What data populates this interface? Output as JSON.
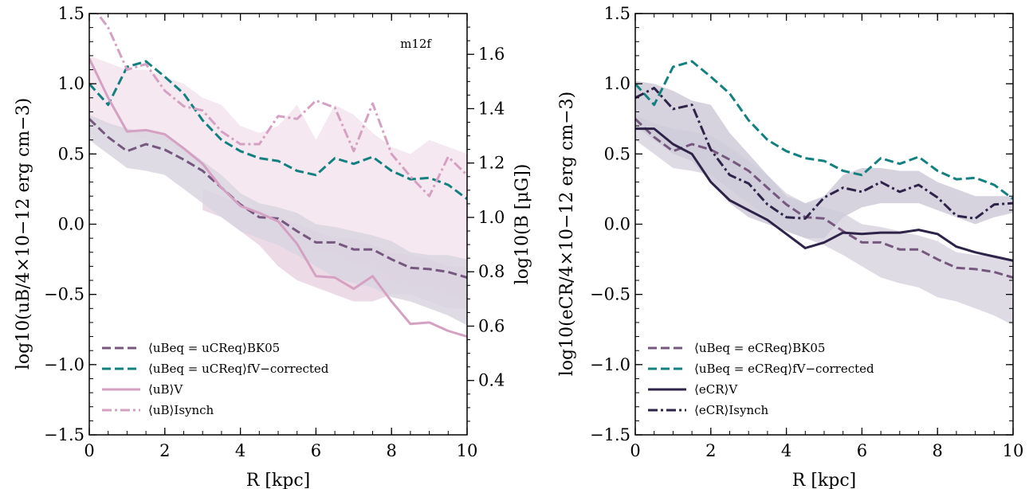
{
  "chart_data": [
    {
      "type": "line",
      "panel": "left",
      "xlabel": "R [kpc]",
      "ylabel": "log10(uB/4×10−12 erg cm−3)",
      "y2label": "log10(B [μG])",
      "annotation": "m12f",
      "xlim": [
        0,
        10
      ],
      "ylim": [
        -1.5,
        1.5
      ],
      "y2lim": [
        0.2,
        1.75
      ],
      "xticks": [
        0,
        2,
        4,
        6,
        8,
        10
      ],
      "xtick_labels": [
        "0",
        "2",
        "4",
        "6",
        "8",
        "10"
      ],
      "yticks": [
        -1.5,
        -1.0,
        -0.5,
        0.0,
        0.5,
        1.0,
        1.5
      ],
      "ytick_labels": [
        "−1.5",
        "−1.0",
        "−0.5",
        "0.0",
        "0.5",
        "1.0",
        "1.5"
      ],
      "y2ticks": [
        0.4,
        0.6,
        0.8,
        1.0,
        1.2,
        1.4,
        1.6
      ],
      "y2tick_labels": [
        "0.4",
        "0.6",
        "0.8",
        "1.0",
        "1.2",
        "1.4",
        "1.6"
      ],
      "legend_position": "lower-left",
      "bands": [
        {
          "color": "#f5e4ee",
          "x": [
            0,
            0.5,
            1,
            1.5,
            2,
            2.5,
            3,
            3.5,
            4,
            4.5,
            5,
            5.5,
            6,
            6.5,
            7,
            7.5,
            8,
            8.5,
            9,
            9.5,
            10
          ],
          "upper": [
            1.2,
            1.15,
            1.1,
            1.1,
            1.05,
            1.0,
            0.9,
            0.85,
            0.7,
            0.65,
            0.7,
            0.85,
            0.6,
            0.85,
            0.78,
            0.65,
            0.55,
            0.5,
            0.6,
            0.55,
            0.5
          ],
          "lower": [
            0.75,
            0.7,
            0.65,
            0.6,
            0.6,
            0.5,
            0.4,
            0.35,
            0.2,
            0.1,
            0.0,
            -0.1,
            -0.2,
            -0.2,
            -0.3,
            -0.3,
            -0.4,
            -0.45,
            -0.45,
            -0.5,
            -0.55
          ]
        },
        {
          "color": "#e9d5e2",
          "x": [
            3,
            3.5,
            4,
            4.5,
            5,
            5.5,
            6,
            6.5,
            7,
            7.5,
            8,
            8.5,
            9,
            9.5,
            10
          ],
          "upper": [
            0.25,
            0.2,
            0.15,
            0.1,
            0.05,
            0.0,
            -0.05,
            -0.1,
            -0.1,
            -0.15,
            -0.2,
            -0.22,
            -0.25,
            -0.3,
            -0.3
          ],
          "lower": [
            0.1,
            0.05,
            -0.05,
            -0.15,
            -0.3,
            -0.4,
            -0.45,
            -0.5,
            -0.55,
            -0.55,
            -0.5,
            -0.5,
            -0.55,
            -0.6,
            -0.6
          ]
        },
        {
          "color": "#d9d5e0",
          "x": [
            0,
            0.5,
            1,
            1.5,
            2,
            2.5,
            3,
            3.5,
            4,
            4.5,
            5,
            5.5,
            6,
            6.5,
            7,
            7.5,
            8,
            8.5,
            9,
            9.5,
            10
          ],
          "upper": [
            0.78,
            0.72,
            0.68,
            0.66,
            0.63,
            0.55,
            0.45,
            0.35,
            0.22,
            0.15,
            0.12,
            0.08,
            0.0,
            -0.02,
            -0.05,
            -0.08,
            -0.12,
            -0.2,
            -0.22,
            -0.22,
            -0.25
          ],
          "lower": [
            0.6,
            0.5,
            0.4,
            0.38,
            0.35,
            0.25,
            0.15,
            0.05,
            -0.05,
            -0.1,
            -0.15,
            -0.22,
            -0.3,
            -0.38,
            -0.42,
            -0.45,
            -0.52,
            -0.55,
            -0.6,
            -0.65,
            -0.72
          ]
        }
      ],
      "series": [
        {
          "name": "⟨uBeq = uCReq⟩BK05",
          "color": "#76587f",
          "dash": "dashed",
          "x": [
            0,
            0.5,
            1,
            1.5,
            2,
            2.5,
            3,
            3.5,
            4,
            4.5,
            5,
            5.5,
            6,
            6.5,
            7,
            7.5,
            8,
            8.5,
            9,
            9.5,
            10
          ],
          "y": [
            0.75,
            0.62,
            0.52,
            0.57,
            0.53,
            0.46,
            0.38,
            0.26,
            0.14,
            0.05,
            0.04,
            -0.05,
            -0.13,
            -0.13,
            -0.18,
            -0.18,
            -0.25,
            -0.31,
            -0.32,
            -0.34,
            -0.38
          ]
        },
        {
          "name": "⟨uBeq = uCReq⟩fV−corrected",
          "color": "#138080",
          "dash": "dashed",
          "x": [
            0,
            0.5,
            1,
            1.5,
            2,
            2.5,
            3,
            3.5,
            4,
            4.5,
            5,
            5.5,
            6,
            6.5,
            7,
            7.5,
            8,
            8.5,
            9,
            9.5,
            10
          ],
          "y": [
            1.0,
            0.85,
            1.12,
            1.16,
            1.05,
            0.93,
            0.74,
            0.6,
            0.52,
            0.47,
            0.45,
            0.38,
            0.35,
            0.47,
            0.43,
            0.48,
            0.38,
            0.32,
            0.33,
            0.28,
            0.18
          ]
        },
        {
          "name": "⟨uB⟩V",
          "color": "#d5a1c3",
          "dash": "solid",
          "x": [
            0,
            0.5,
            1,
            1.5,
            2,
            2.5,
            3,
            3.5,
            4,
            4.5,
            5,
            5.5,
            6,
            6.5,
            7,
            7.5,
            8,
            8.5,
            9,
            9.5,
            10
          ],
          "y": [
            1.18,
            0.9,
            0.66,
            0.67,
            0.64,
            0.54,
            0.43,
            0.26,
            0.13,
            0.08,
            0.02,
            -0.14,
            -0.37,
            -0.38,
            -0.46,
            -0.37,
            -0.55,
            -0.71,
            -0.7,
            -0.76,
            -0.8
          ]
        },
        {
          "name": "⟨uB⟩Isynch",
          "color": "#d5a1c3",
          "dash": "dashdot",
          "x": [
            0,
            0.5,
            1,
            1.5,
            2,
            2.5,
            3,
            3.5,
            4,
            4.5,
            5,
            5.5,
            6,
            6.5,
            7,
            7.5,
            8,
            8.5,
            9,
            9.5,
            10
          ],
          "y": [
            1.58,
            1.4,
            1.1,
            1.14,
            0.95,
            0.84,
            0.81,
            0.66,
            0.57,
            0.57,
            0.77,
            0.75,
            0.88,
            0.83,
            0.52,
            0.86,
            0.5,
            0.34,
            0.2,
            0.48,
            0.35
          ]
        }
      ],
      "legend": [
        {
          "label": "⟨uBeq = uCReq⟩BK05",
          "series": 0
        },
        {
          "label": "⟨uBeq = uCReq⟩fV−corrected",
          "series": 1
        },
        {
          "label": "⟨uB⟩V",
          "series": 2
        },
        {
          "label": "⟨uB⟩Isynch",
          "series": 3
        }
      ]
    },
    {
      "type": "line",
      "panel": "right",
      "xlabel": "R [kpc]",
      "ylabel": "log10(eCR/4×10−12 erg cm−3)",
      "xlim": [
        0,
        10
      ],
      "ylim": [
        -1.5,
        1.5
      ],
      "xticks": [
        0,
        2,
        4,
        6,
        8,
        10
      ],
      "xtick_labels": [
        "0",
        "2",
        "4",
        "6",
        "8",
        "10"
      ],
      "yticks": [
        -1.5,
        -1.0,
        -0.5,
        0.0,
        0.5,
        1.0,
        1.5
      ],
      "ytick_labels": [
        "−1.5",
        "−1.0",
        "−0.5",
        "0.0",
        "0.5",
        "1.0",
        "1.5"
      ],
      "legend_position": "lower-left",
      "bands": [
        {
          "color": "#d9d5e0",
          "x": [
            0,
            0.5,
            1,
            1.5,
            2,
            2.5,
            3,
            3.5,
            4,
            4.5,
            5,
            5.5,
            6,
            6.5,
            7,
            7.5,
            8,
            8.5,
            9,
            9.5,
            10
          ],
          "upper": [
            0.78,
            0.72,
            0.68,
            0.66,
            0.63,
            0.55,
            0.45,
            0.35,
            0.22,
            0.15,
            0.12,
            0.08,
            0.0,
            -0.02,
            -0.05,
            -0.08,
            -0.12,
            -0.2,
            -0.22,
            -0.22,
            -0.25
          ],
          "lower": [
            0.6,
            0.5,
            0.4,
            0.38,
            0.35,
            0.25,
            0.15,
            0.05,
            -0.05,
            -0.1,
            -0.15,
            -0.22,
            -0.3,
            -0.38,
            -0.42,
            -0.45,
            -0.52,
            -0.55,
            -0.6,
            -0.65,
            -0.72
          ]
        },
        {
          "color": "#cfcbd9",
          "x": [
            0,
            0.5,
            1,
            1.5,
            2,
            2.5,
            3,
            3.5,
            4,
            4.5,
            5,
            5.5,
            6,
            6.5,
            7,
            7.5,
            8,
            8.5,
            9,
            9.5,
            10
          ],
          "upper": [
            1.02,
            1.0,
            0.95,
            0.88,
            0.85,
            0.65,
            0.5,
            0.35,
            0.2,
            0.15,
            0.2,
            0.35,
            0.4,
            0.4,
            0.38,
            0.38,
            0.3,
            0.25,
            0.2,
            0.2,
            0.2
          ],
          "lower": [
            0.7,
            0.6,
            0.5,
            0.45,
            0.3,
            0.15,
            0.05,
            0.0,
            -0.05,
            -0.1,
            -0.1,
            0.05,
            0.12,
            0.15,
            0.15,
            0.15,
            0.1,
            0.05,
            0.0,
            0.05,
            0.08
          ]
        }
      ],
      "series": [
        {
          "name": "⟨uBeq = eCReq⟩BK05",
          "color": "#76587f",
          "dash": "dashed",
          "x": [
            0,
            0.5,
            1,
            1.5,
            2,
            2.5,
            3,
            3.5,
            4,
            4.5,
            5,
            5.5,
            6,
            6.5,
            7,
            7.5,
            8,
            8.5,
            9,
            9.5,
            10
          ],
          "y": [
            0.75,
            0.62,
            0.52,
            0.57,
            0.53,
            0.46,
            0.38,
            0.26,
            0.14,
            0.05,
            0.04,
            -0.05,
            -0.13,
            -0.13,
            -0.18,
            -0.18,
            -0.25,
            -0.31,
            -0.32,
            -0.34,
            -0.38
          ]
        },
        {
          "name": "⟨uBeq = eCReq⟩fV−corrected",
          "color": "#138080",
          "dash": "dashed",
          "x": [
            0,
            0.5,
            1,
            1.5,
            2,
            2.5,
            3,
            3.5,
            4,
            4.5,
            5,
            5.5,
            6,
            6.5,
            7,
            7.5,
            8,
            8.5,
            9,
            9.5,
            10
          ],
          "y": [
            1.0,
            0.85,
            1.12,
            1.16,
            1.05,
            0.93,
            0.74,
            0.6,
            0.52,
            0.47,
            0.45,
            0.38,
            0.35,
            0.47,
            0.43,
            0.48,
            0.38,
            0.32,
            0.33,
            0.28,
            0.18
          ]
        },
        {
          "name": "⟨eCR⟩V",
          "color": "#2e2348",
          "dash": "solid",
          "x": [
            0,
            0.5,
            1,
            1.5,
            2,
            2.5,
            3,
            3.5,
            4,
            4.5,
            5,
            5.5,
            6,
            6.5,
            7,
            7.5,
            8,
            8.5,
            9,
            9.5,
            10
          ],
          "y": [
            0.68,
            0.68,
            0.57,
            0.5,
            0.3,
            0.17,
            0.1,
            0.03,
            -0.07,
            -0.17,
            -0.13,
            -0.06,
            -0.07,
            -0.06,
            -0.06,
            -0.04,
            -0.07,
            -0.16,
            -0.2,
            -0.23,
            -0.26
          ]
        },
        {
          "name": "⟨eCR⟩Isynch",
          "color": "#2e2348",
          "dash": "dashdot",
          "x": [
            0,
            0.5,
            1,
            1.5,
            2,
            2.5,
            3,
            3.5,
            4,
            4.5,
            5,
            5.5,
            6,
            6.5,
            7,
            7.5,
            8,
            8.5,
            9,
            9.5,
            10
          ],
          "y": [
            0.9,
            0.97,
            0.82,
            0.85,
            0.53,
            0.35,
            0.29,
            0.14,
            0.05,
            0.04,
            0.19,
            0.26,
            0.23,
            0.3,
            0.23,
            0.28,
            0.19,
            0.06,
            0.04,
            0.14,
            0.15
          ]
        }
      ],
      "legend": [
        {
          "label": "⟨uBeq = eCReq⟩BK05",
          "series": 0
        },
        {
          "label": "⟨uBeq = eCReq⟩fV−corrected",
          "series": 1
        },
        {
          "label": "⟨eCR⟩V",
          "series": 2
        },
        {
          "label": "⟨eCR⟩Isynch",
          "series": 3
        }
      ]
    }
  ]
}
